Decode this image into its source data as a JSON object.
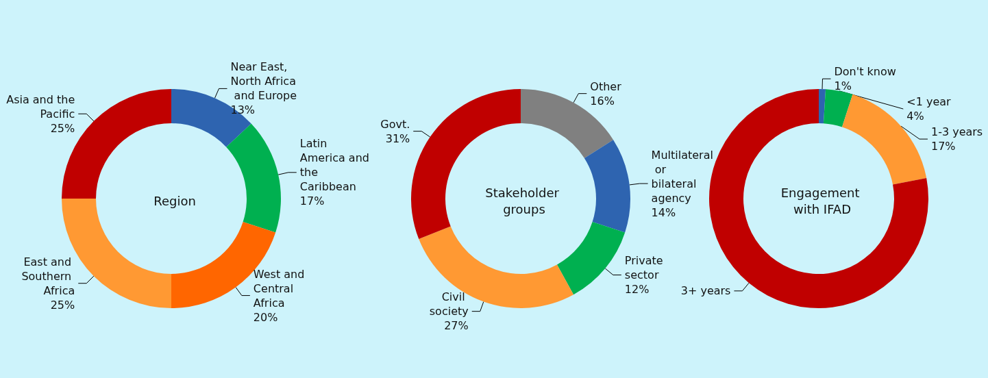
{
  "chart_data": [
    {
      "type": "donut",
      "title": "Region",
      "categories": [
        "Near East, North Africa and Europe",
        "Latin America and the Caribbean",
        "West and Central Africa",
        "East and Southern Africa",
        "Asia and the Pacific"
      ],
      "values": [
        13,
        17,
        20,
        25,
        25
      ],
      "value_labels": [
        "13%",
        "17%",
        "20%",
        "25%",
        "25%"
      ],
      "colors": [
        "#2e64b0",
        "#00b050",
        "#ff6600",
        "#ff9933",
        "#c00000"
      ],
      "legend": false
    },
    {
      "type": "donut",
      "title": "Stakeholder groups",
      "categories": [
        "Other",
        "Multilateral or bilateral agency",
        "Private sector",
        "Civil society",
        "Govt."
      ],
      "values": [
        16,
        14,
        12,
        27,
        31
      ],
      "value_labels": [
        "16%",
        "14%",
        "12%",
        "27%",
        "31%"
      ],
      "colors": [
        "#808080",
        "#2e64b0",
        "#00b050",
        "#ff9933",
        "#c00000"
      ],
      "legend": false
    },
    {
      "type": "donut",
      "title": "Engagement with IFAD",
      "categories": [
        "Don't know",
        "<1 year",
        "1-3 years",
        "3+ years"
      ],
      "values": [
        1,
        4,
        17,
        78
      ],
      "value_labels": [
        "1%",
        "4%",
        "17%",
        null
      ],
      "colors": [
        "#2e64b0",
        "#00b050",
        "#ff9933",
        "#c00000"
      ],
      "legend": false
    }
  ]
}
